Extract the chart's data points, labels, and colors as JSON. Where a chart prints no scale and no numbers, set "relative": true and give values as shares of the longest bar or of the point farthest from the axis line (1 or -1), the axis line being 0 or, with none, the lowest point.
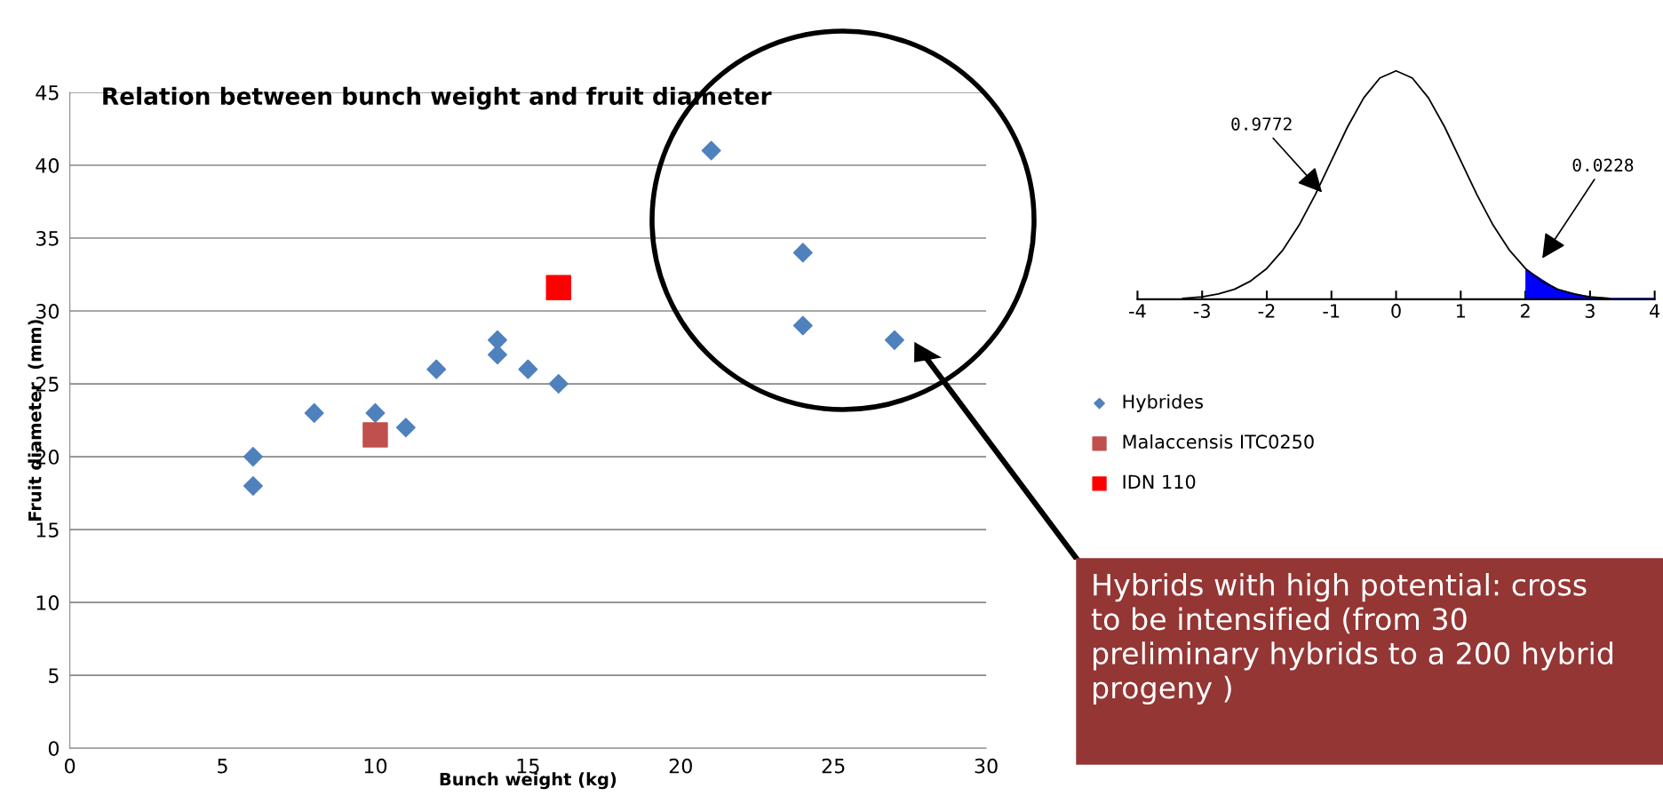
{
  "chart_data": [
    {
      "type": "scatter",
      "title": "Relation between bunch weight and fruit diameter",
      "xlabel": "Bunch weight (kg)",
      "ylabel": "Fruit diameter  (mm)",
      "xlim": [
        0,
        30
      ],
      "xticks": [
        0,
        5,
        10,
        15,
        20,
        25,
        30
      ],
      "ylim": [
        0,
        45
      ],
      "yticks": [
        0,
        5,
        10,
        15,
        20,
        25,
        30,
        35,
        40,
        45
      ],
      "grid": "y",
      "legend": "right",
      "series": [
        {
          "name": "Hybrides",
          "color": "#4f81bd",
          "marker": "diamond",
          "x": [
            6,
            6,
            8,
            10,
            11,
            12,
            14,
            14,
            15,
            16,
            21,
            24,
            24,
            27
          ],
          "values": [
            20,
            18,
            23,
            23,
            22,
            26,
            28,
            27,
            26,
            25,
            41,
            34,
            29,
            28
          ]
        },
        {
          "name": "Malaccensis ITC0250",
          "color": "#c0504d",
          "marker": "square",
          "x": [
            10
          ],
          "values": [
            21.5
          ]
        },
        {
          "name": "IDN 110",
          "color": "#ff0000",
          "marker": "square",
          "x": [
            16
          ],
          "values": [
            31.6
          ]
        }
      ],
      "annotations": [
        "Hybrids with high potential: cross to be intensified (from 30 preliminary hybrids to a 200 hybrid progeny )"
      ]
    },
    {
      "type": "line",
      "relative": true,
      "xlim": [
        -4,
        4
      ],
      "xticks": [
        -4,
        -3,
        -2,
        -1,
        0,
        1,
        2,
        3,
        4
      ],
      "grid": false,
      "tick_labels": "x",
      "series": [
        {
          "color": "#000000",
          "x": [
            -3.3,
            -3,
            -2.75,
            -2.5,
            -2.25,
            -2,
            -1.75,
            -1.5,
            -1.25,
            -1,
            -0.75,
            -0.5,
            -0.25,
            0,
            0.25,
            0.5,
            0.75,
            1,
            1.25,
            1.5,
            1.75,
            2,
            2.25,
            2.5,
            2.75,
            3,
            3.3
          ],
          "values": [
            0.004,
            0.011,
            0.023,
            0.044,
            0.08,
            0.135,
            0.216,
            0.325,
            0.458,
            0.607,
            0.755,
            0.882,
            0.969,
            1,
            0.969,
            0.882,
            0.755,
            0.607,
            0.458,
            0.325,
            0.216,
            0.135,
            0.08,
            0.044,
            0.023,
            0.011,
            0.004
          ]
        },
        {
          "type": "area",
          "color": "#0000ff",
          "x": [
            2,
            2.5,
            3,
            3.3,
            4
          ],
          "values": [
            0.135,
            0.044,
            0.011,
            0.006,
            0.006
          ]
        }
      ],
      "annotations": [
        "0.9772",
        "0.0228"
      ]
    }
  ]
}
